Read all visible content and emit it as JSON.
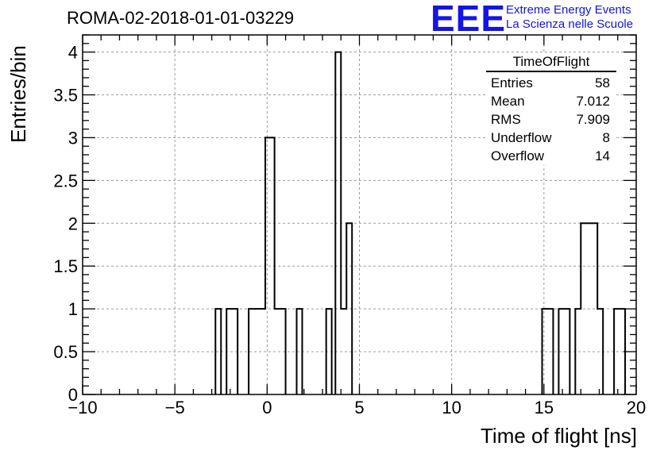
{
  "header": {
    "title": "ROMA-02-2018-01-01-03229",
    "logo": "EEE",
    "logo_line1": "Extreme Energy Events",
    "logo_line2": "La Scienza nelle Scuole"
  },
  "stats_box": {
    "title": "TimeOfFlight",
    "rows": [
      {
        "label": "Entries",
        "value": "58"
      },
      {
        "label": "Mean",
        "value": "7.012"
      },
      {
        "label": "RMS",
        "value": "7.909"
      },
      {
        "label": "Underflow",
        "value": "8"
      },
      {
        "label": "Overflow",
        "value": "14"
      }
    ]
  },
  "chart_data": {
    "type": "bar",
    "title": "ROMA-02-2018-01-01-03229",
    "xlabel": "Time of flight [ns]",
    "ylabel": "Entries/bin",
    "xlim": [
      -10,
      20
    ],
    "ylim": [
      0,
      4.2
    ],
    "grid": true,
    "bin_width": 0.6,
    "xticks": [
      -10,
      -5,
      0,
      5,
      10,
      15,
      20
    ],
    "xtick_labels": [
      "−10",
      "−5",
      "0",
      "5",
      "10",
      "15",
      "20"
    ],
    "yticks": [
      0,
      0.5,
      1,
      1.5,
      2,
      2.5,
      3,
      3.5,
      4
    ],
    "ytick_labels": [
      "0",
      "0.5",
      "1",
      "1.5",
      "2",
      "2.5",
      "3",
      "3.5",
      "4"
    ],
    "bins": [
      {
        "x0": -2.8,
        "x1": -2.5,
        "value": 1
      },
      {
        "x0": -2.2,
        "x1": -1.6,
        "value": 1
      },
      {
        "x0": -1.0,
        "x1": -0.1,
        "value": 1
      },
      {
        "x0": -0.1,
        "x1": 0.4,
        "value": 3
      },
      {
        "x0": 0.4,
        "x1": 1.0,
        "value": 1
      },
      {
        "x0": 1.6,
        "x1": 1.9,
        "value": 1
      },
      {
        "x0": 3.2,
        "x1": 3.5,
        "value": 1
      },
      {
        "x0": 3.7,
        "x1": 4.0,
        "value": 4
      },
      {
        "x0": 4.0,
        "x1": 4.3,
        "value": 1
      },
      {
        "x0": 4.3,
        "x1": 4.6,
        "value": 2
      },
      {
        "x0": 14.9,
        "x1": 15.5,
        "value": 1
      },
      {
        "x0": 15.8,
        "x1": 16.4,
        "value": 1
      },
      {
        "x0": 16.7,
        "x1": 17.0,
        "value": 1
      },
      {
        "x0": 17.0,
        "x1": 17.9,
        "value": 2
      },
      {
        "x0": 17.9,
        "x1": 18.2,
        "value": 1
      },
      {
        "x0": 18.8,
        "x1": 19.4,
        "value": 1
      }
    ]
  }
}
